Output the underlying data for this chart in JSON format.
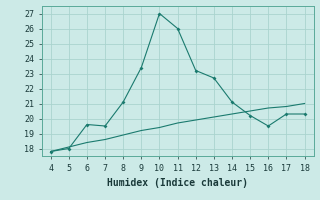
{
  "xlabel": "Humidex (Indice chaleur)",
  "x": [
    4,
    5,
    6,
    7,
    8,
    9,
    10,
    11,
    12,
    13,
    14,
    15,
    16,
    17,
    18
  ],
  "y_curve": [
    17.8,
    18.0,
    19.6,
    19.5,
    21.1,
    23.4,
    27.0,
    26.0,
    23.2,
    22.7,
    21.1,
    20.2,
    19.5,
    20.3,
    20.3
  ],
  "y_line": [
    17.8,
    18.1,
    18.4,
    18.6,
    18.9,
    19.2,
    19.4,
    19.7,
    19.9,
    20.1,
    20.3,
    20.5,
    20.7,
    20.8,
    21.0
  ],
  "line_color": "#1a7a6e",
  "bg_color": "#cceae7",
  "grid_color": "#aad4ce",
  "xlim": [
    3.5,
    18.5
  ],
  "ylim": [
    17.5,
    27.5
  ],
  "yticks": [
    18,
    19,
    20,
    21,
    22,
    23,
    24,
    25,
    26,
    27
  ],
  "xticks": [
    4,
    5,
    6,
    7,
    8,
    9,
    10,
    11,
    12,
    13,
    14,
    15,
    16,
    17,
    18
  ],
  "tick_fontsize": 6,
  "xlabel_fontsize": 7
}
